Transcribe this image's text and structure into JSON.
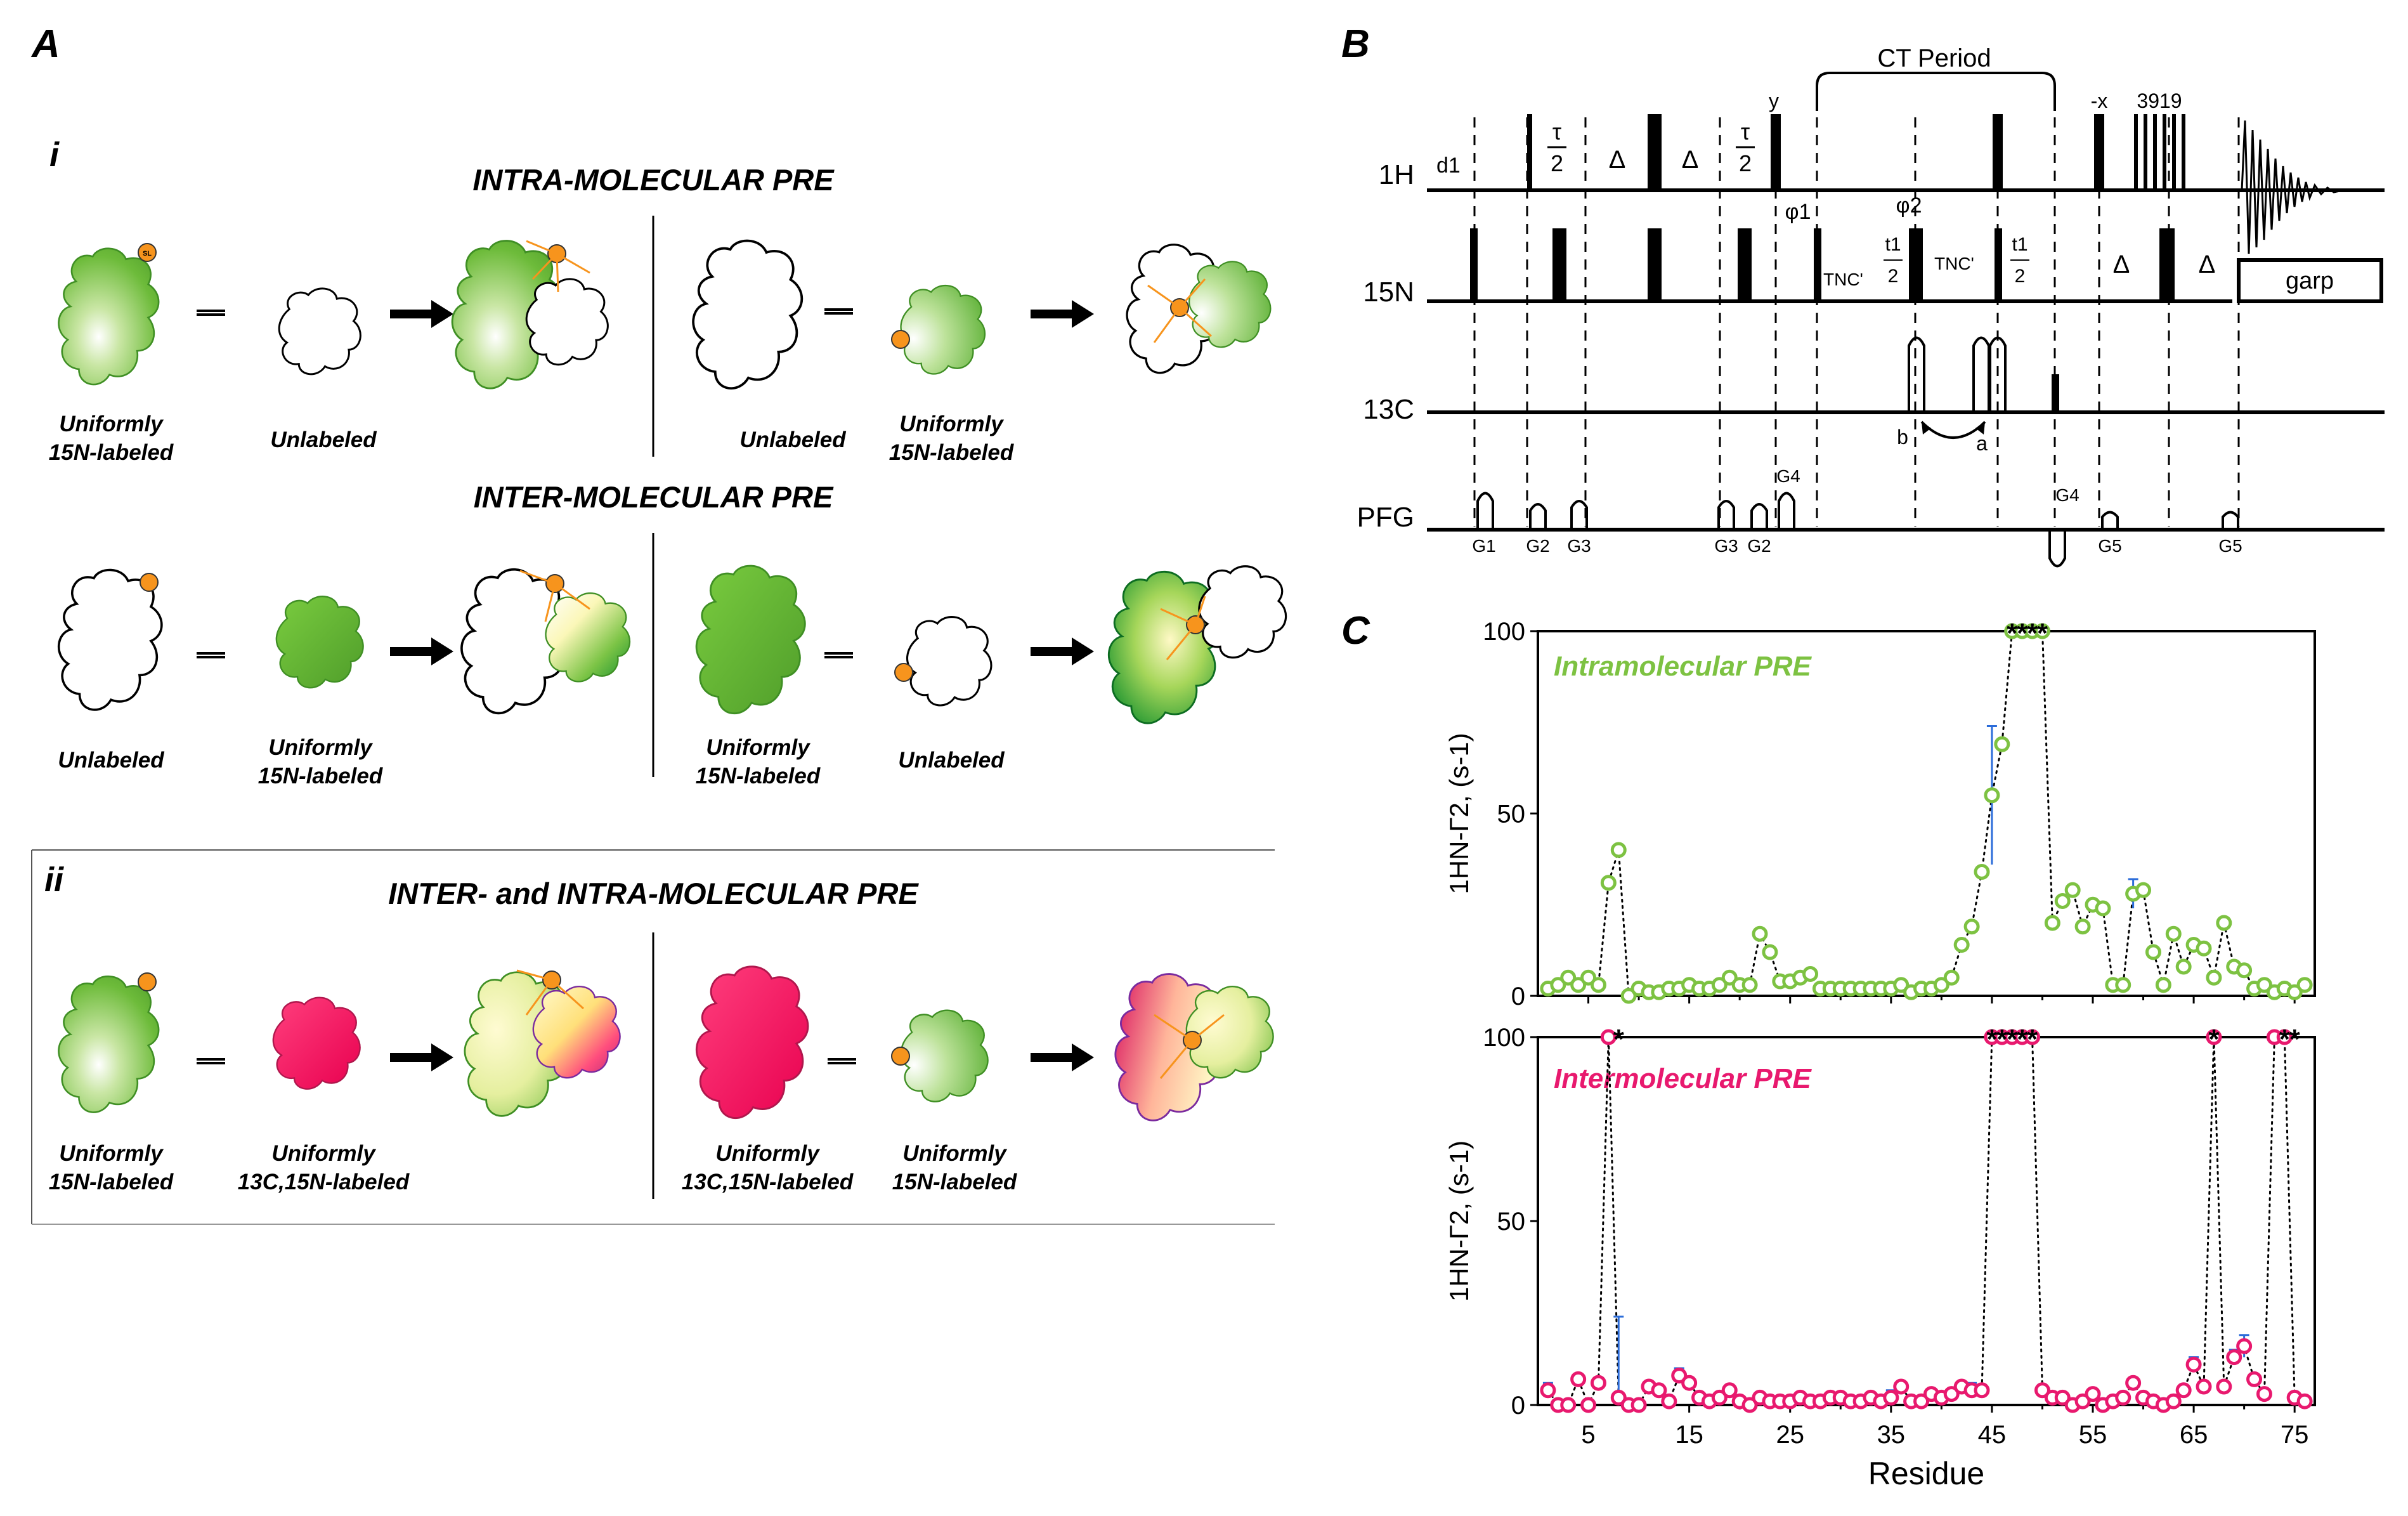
{
  "panels": {
    "a": "A",
    "b": "B",
    "c": "C"
  },
  "section_i": {
    "label": "i",
    "intra_title": "INTRA-MOLECULAR PRE",
    "inter_title": "INTER-MOLECULAR PRE",
    "intra_left": {
      "first": [
        "Uniformly",
        "15N-labeled"
      ],
      "second": "Unlabeled"
    },
    "intra_right": {
      "first": "Unlabeled",
      "second": [
        "Uniformly",
        "15N-labeled"
      ]
    },
    "inter_left": {
      "first": "Unlabeled",
      "second": [
        "Uniformly",
        "15N-labeled"
      ]
    },
    "inter_right": {
      "first": [
        "Uniformly",
        "15N-labeled"
      ],
      "second": "Unlabeled"
    }
  },
  "section_ii": {
    "label": "ii",
    "title": "INTER- and INTRA-MOLECULAR PRE",
    "left": {
      "first": [
        "Uniformly",
        "15N-labeled"
      ],
      "second": [
        "Uniformly",
        "13C,15N-labeled"
      ]
    },
    "right": {
      "first": [
        "Uniformly",
        "13C,15N-labeled"
      ],
      "second": [
        "Uniformly",
        "15N-labeled"
      ]
    }
  },
  "spin_label": "SL",
  "pulse_sequence": {
    "channels": [
      "1H",
      "15N",
      "13C",
      "PFG"
    ],
    "ct_period": "CT Period",
    "labels": {
      "d1": "d1",
      "tau_num": "τ",
      "tau_den": "2",
      "delta": "Δ",
      "y": "y",
      "minus_x": "-x",
      "watergate": "3919",
      "phi1": "φ1",
      "phi2": "φ2",
      "tnc": "TNC'",
      "t1": "t1",
      "two": "2",
      "garp": "garp",
      "a": "a",
      "b": "b"
    },
    "gradients": [
      "G1",
      "G2",
      "G3",
      "G3",
      "G2",
      "G4",
      "G4",
      "G5",
      "G5"
    ]
  },
  "chart_data": [
    {
      "type": "scatter",
      "title": "Intramolecular PRE",
      "ylabel": "1HN-Γ2, (s-1)",
      "xlabel": "",
      "xlim": [
        0,
        77
      ],
      "ylim": [
        0,
        100
      ],
      "yticks": [
        0,
        50,
        100
      ],
      "series": [
        {
          "name": "Intramolecular PRE",
          "color": "#7dc242",
          "x": [
            1,
            2,
            3,
            4,
            5,
            6,
            7,
            8,
            9,
            10,
            11,
            12,
            13,
            14,
            15,
            16,
            17,
            18,
            19,
            20,
            21,
            22,
            23,
            24,
            25,
            26,
            27,
            28,
            29,
            30,
            31,
            32,
            33,
            34,
            35,
            36,
            37,
            38,
            39,
            40,
            41,
            42,
            43,
            44,
            45,
            46,
            47,
            48,
            49,
            50,
            51,
            52,
            53,
            54,
            55,
            56,
            57,
            58,
            59,
            60,
            61,
            62,
            63,
            64,
            65,
            66,
            67,
            68,
            69,
            70,
            71,
            72,
            73,
            74,
            75,
            76
          ],
          "y": [
            2,
            3,
            5,
            3,
            5,
            3,
            31,
            40,
            0,
            2,
            1,
            1,
            2,
            2,
            3,
            2,
            2,
            3,
            5,
            3,
            3,
            17,
            12,
            4,
            4,
            5,
            6,
            2,
            2,
            2,
            2,
            2,
            2,
            2,
            2,
            3,
            1,
            2,
            2,
            3,
            5,
            14,
            19,
            34,
            55,
            69,
            100,
            100,
            100,
            100,
            20,
            26,
            29,
            19,
            25,
            24,
            3,
            3,
            28,
            29,
            12,
            3,
            17,
            8,
            14,
            13,
            5,
            20,
            8,
            7,
            2,
            3,
            1,
            2,
            1,
            3
          ],
          "err": [
            0,
            0,
            0,
            0,
            0,
            0,
            0,
            0,
            0,
            0,
            0,
            0,
            0,
            0,
            0,
            0,
            0,
            0,
            0,
            0,
            0,
            0,
            0,
            0,
            0,
            0,
            0,
            0,
            0,
            0,
            0,
            0,
            0,
            0,
            0,
            0,
            0,
            0,
            0,
            0,
            0,
            0,
            0,
            0,
            19,
            0,
            0,
            0,
            0,
            0,
            0,
            0,
            0,
            0,
            0,
            0,
            0,
            0,
            4,
            0,
            0,
            0,
            0,
            0,
            0,
            0,
            0,
            0,
            0,
            0,
            0,
            0,
            0,
            0,
            0,
            0
          ]
        }
      ],
      "asterisks": [
        47,
        48,
        49,
        50
      ],
      "asterisk_label": "*"
    },
    {
      "type": "scatter",
      "title": "Intermolecular PRE",
      "ylabel": "1HN-Γ2, (s-1)",
      "xlabel": "Residue",
      "xlim": [
        0,
        77
      ],
      "ylim": [
        0,
        100
      ],
      "xticks": [
        5,
        15,
        25,
        35,
        45,
        55,
        65,
        75
      ],
      "yticks": [
        0,
        50,
        100
      ],
      "series": [
        {
          "name": "Intermolecular PRE",
          "color": "#e8196e",
          "x": [
            1,
            2,
            3,
            4,
            5,
            6,
            7,
            8,
            9,
            10,
            11,
            12,
            13,
            14,
            15,
            16,
            17,
            18,
            19,
            20,
            21,
            22,
            23,
            24,
            25,
            26,
            27,
            28,
            29,
            30,
            31,
            32,
            33,
            34,
            35,
            36,
            37,
            38,
            39,
            40,
            41,
            42,
            43,
            44,
            45,
            46,
            47,
            48,
            49,
            50,
            51,
            52,
            53,
            54,
            55,
            56,
            57,
            58,
            59,
            60,
            61,
            62,
            63,
            64,
            65,
            66,
            67,
            68,
            69,
            70,
            71,
            72,
            73,
            74,
            75,
            76
          ],
          "y": [
            4,
            0,
            0,
            7,
            0,
            6,
            100,
            2,
            0,
            0,
            5,
            4,
            1,
            8,
            6,
            2,
            1,
            2,
            4,
            1,
            0,
            2,
            1,
            1,
            1,
            2,
            1,
            1,
            2,
            2,
            1,
            1,
            2,
            1,
            2,
            5,
            1,
            1,
            3,
            2,
            3,
            5,
            4,
            4,
            100,
            100,
            100,
            100,
            100,
            4,
            2,
            2,
            0,
            1,
            3,
            0,
            1,
            2,
            6,
            2,
            1,
            0,
            1,
            4,
            11,
            5,
            100,
            5,
            13,
            16,
            7,
            3,
            100,
            100,
            2,
            1
          ],
          "err": [
            2,
            0,
            0,
            0,
            0,
            0,
            0,
            22,
            0,
            0,
            0,
            0,
            0,
            2,
            0,
            0,
            0,
            0,
            0,
            0,
            0,
            0,
            0,
            0,
            0,
            0,
            0,
            0,
            0,
            0,
            0,
            0,
            0,
            0,
            2,
            0,
            0,
            0,
            0,
            0,
            0,
            0,
            2,
            0,
            0,
            0,
            0,
            0,
            0,
            0,
            0,
            0,
            0,
            0,
            0,
            0,
            0,
            0,
            0,
            0,
            0,
            0,
            0,
            0,
            2,
            0,
            0,
            0,
            2,
            3,
            0,
            0,
            0,
            0,
            0,
            0
          ]
        }
      ],
      "asterisks": [
        8,
        45,
        46,
        47,
        48,
        49,
        67,
        74,
        75
      ],
      "asterisk_label": "*"
    }
  ]
}
